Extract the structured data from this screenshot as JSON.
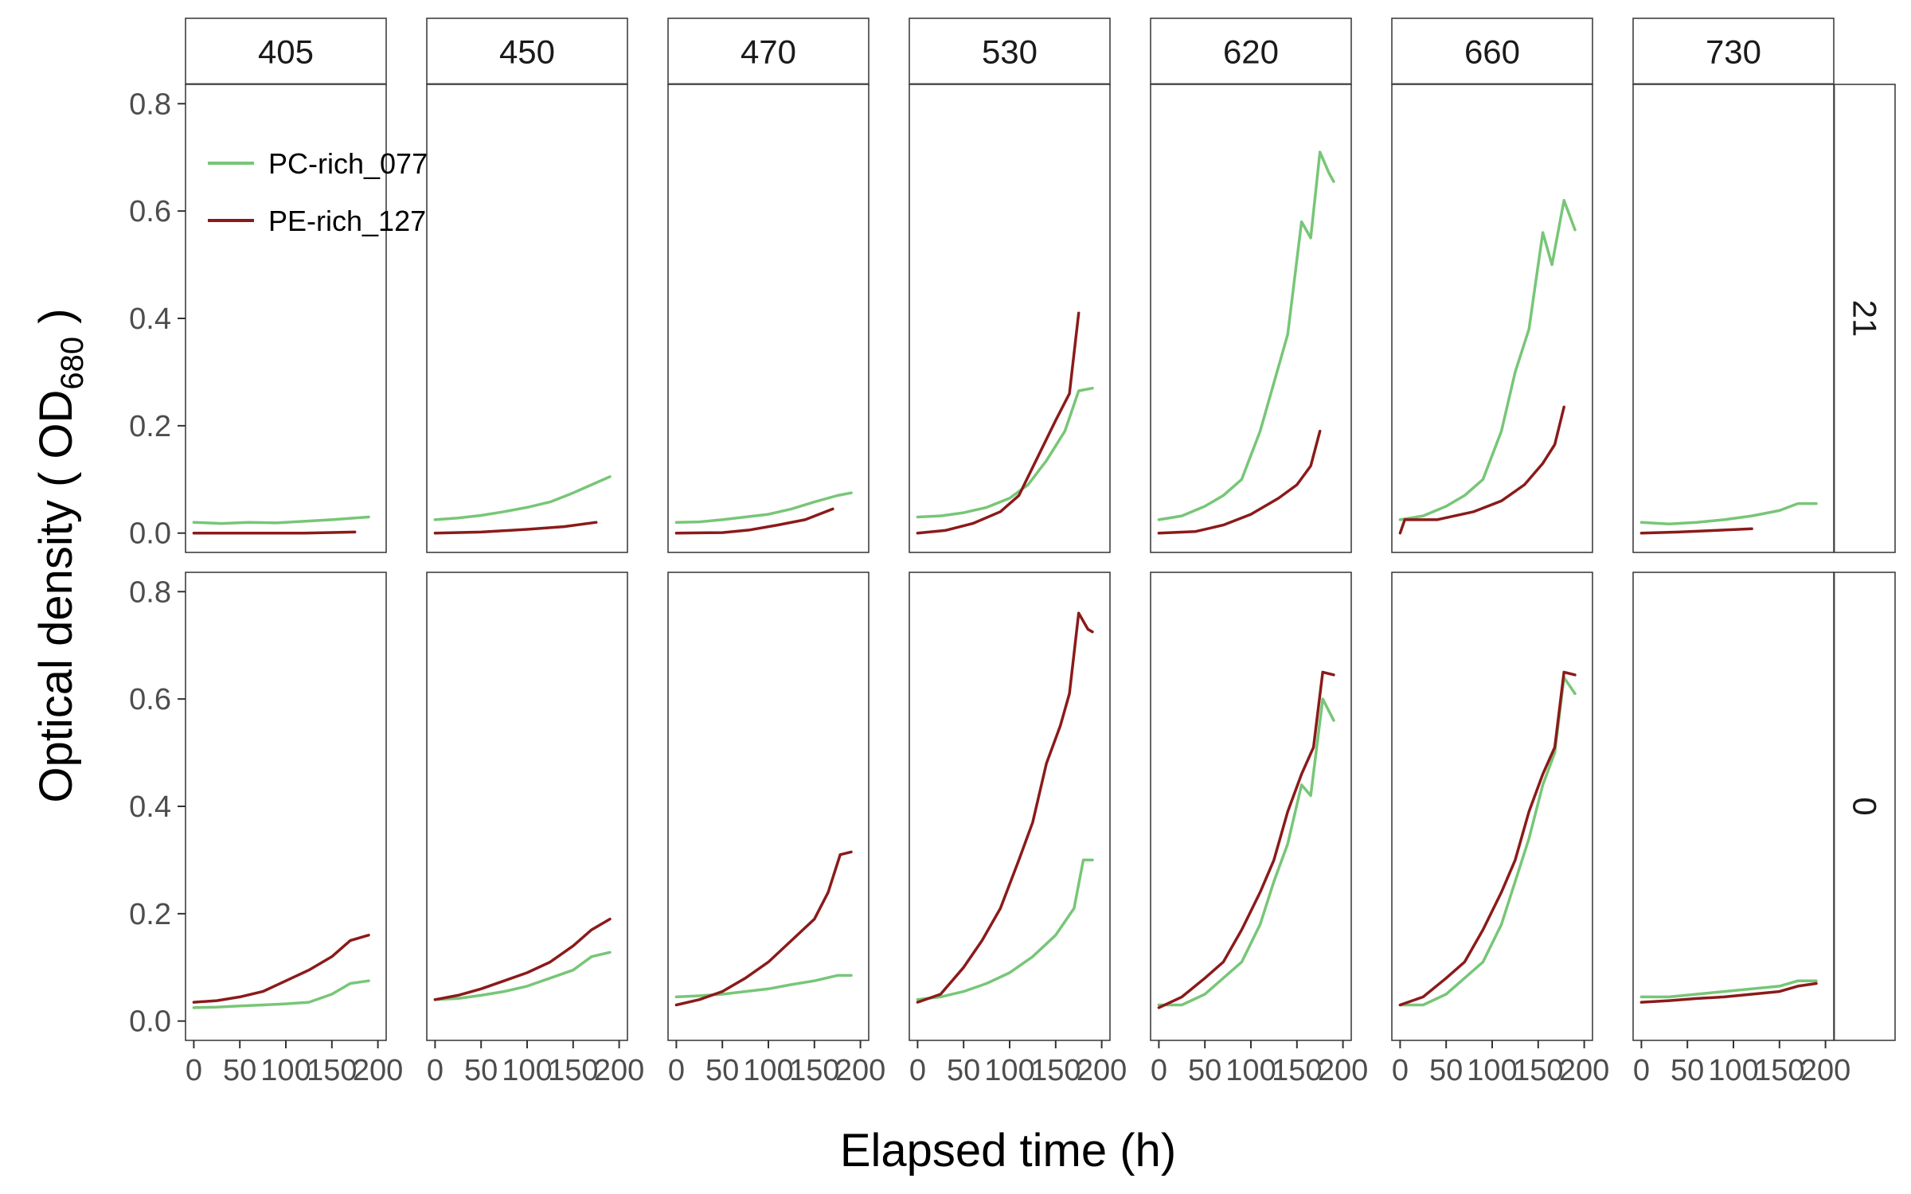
{
  "chart_data": {
    "type": "line",
    "xlabel": "Elapsed time (h)",
    "ylabel": {
      "prefix": "Optical density ( OD",
      "subscript": "680",
      "suffix": " )"
    },
    "xlim": [
      0,
      200
    ],
    "ylim": [
      0,
      0.8
    ],
    "x_ticks": [
      0,
      50,
      100,
      150,
      200
    ],
    "y_ticks": [
      0.0,
      0.2,
      0.4,
      0.6,
      0.8
    ],
    "y_tick_labels": [
      "0.0",
      "0.2",
      "0.4",
      "0.6",
      "0.8"
    ],
    "columns": [
      "405",
      "450",
      "470",
      "530",
      "620",
      "660",
      "730"
    ],
    "rows": [
      "21",
      "0"
    ],
    "legend": {
      "position": "top-left (inside first panel)",
      "entries": [
        {
          "name": "PC-rich_077",
          "color": "#77c677"
        },
        {
          "name": "PE-rich_127",
          "color": "#8b1a1a"
        }
      ]
    },
    "grid": false,
    "panels": [
      {
        "row": "21",
        "column": "405",
        "series": [
          {
            "name": "PC-rich_077",
            "x": [
              0,
              30,
              60,
              90,
              120,
              150,
              190
            ],
            "y": [
              0.02,
              0.018,
              0.02,
              0.019,
              0.022,
              0.025,
              0.03
            ]
          },
          {
            "name": "PE-rich_127",
            "x": [
              0,
              60,
              120,
              175
            ],
            "y": [
              0.0,
              0.0,
              0.0,
              0.002
            ]
          }
        ]
      },
      {
        "row": "21",
        "column": "450",
        "series": [
          {
            "name": "PC-rich_077",
            "x": [
              0,
              25,
              50,
              75,
              100,
              125,
              150,
              170,
              190
            ],
            "y": [
              0.025,
              0.028,
              0.033,
              0.04,
              0.048,
              0.058,
              0.075,
              0.09,
              0.105
            ]
          },
          {
            "name": "PE-rich_127",
            "x": [
              0,
              50,
              100,
              140,
              175
            ],
            "y": [
              0.0,
              0.002,
              0.007,
              0.012,
              0.02
            ]
          }
        ]
      },
      {
        "row": "21",
        "column": "470",
        "series": [
          {
            "name": "PC-rich_077",
            "x": [
              0,
              25,
              50,
              75,
              100,
              125,
              150,
              175,
              190
            ],
            "y": [
              0.02,
              0.021,
              0.025,
              0.03,
              0.035,
              0.045,
              0.058,
              0.07,
              0.075
            ]
          },
          {
            "name": "PE-rich_127",
            "x": [
              0,
              50,
              80,
              110,
              140,
              170
            ],
            "y": [
              0.0,
              0.001,
              0.006,
              0.015,
              0.025,
              0.045
            ]
          }
        ]
      },
      {
        "row": "21",
        "column": "530",
        "series": [
          {
            "name": "PC-rich_077",
            "x": [
              0,
              25,
              50,
              75,
              100,
              120,
              140,
              160,
              175,
              190
            ],
            "y": [
              0.03,
              0.032,
              0.038,
              0.048,
              0.065,
              0.09,
              0.135,
              0.19,
              0.265,
              0.27
            ]
          },
          {
            "name": "PE-rich_127",
            "x": [
              0,
              30,
              60,
              90,
              110,
              130,
              150,
              165,
              175
            ],
            "y": [
              0.0,
              0.005,
              0.018,
              0.04,
              0.07,
              0.14,
              0.21,
              0.26,
              0.41
            ]
          }
        ]
      },
      {
        "row": "21",
        "column": "620",
        "series": [
          {
            "name": "PC-rich_077",
            "x": [
              0,
              25,
              50,
              70,
              90,
              110,
              125,
              140,
              155,
              165,
              175,
              185,
              190
            ],
            "y": [
              0.025,
              0.032,
              0.05,
              0.07,
              0.1,
              0.19,
              0.28,
              0.37,
              0.58,
              0.55,
              0.71,
              0.67,
              0.655
            ]
          },
          {
            "name": "PE-rich_127",
            "x": [
              0,
              40,
              70,
              100,
              130,
              150,
              165,
              175
            ],
            "y": [
              0.0,
              0.003,
              0.015,
              0.035,
              0.065,
              0.09,
              0.125,
              0.19
            ]
          }
        ]
      },
      {
        "row": "21",
        "column": "660",
        "series": [
          {
            "name": "PC-rich_077",
            "x": [
              0,
              25,
              50,
              70,
              90,
              110,
              125,
              140,
              155,
              165,
              178,
              190
            ],
            "y": [
              0.025,
              0.032,
              0.05,
              0.07,
              0.1,
              0.19,
              0.3,
              0.38,
              0.56,
              0.5,
              0.62,
              0.565
            ]
          },
          {
            "name": "PE-rich_127",
            "x": [
              0,
              5,
              40,
              80,
              110,
              135,
              155,
              168,
              178
            ],
            "y": [
              0.0,
              0.025,
              0.025,
              0.04,
              0.06,
              0.09,
              0.13,
              0.165,
              0.235
            ]
          }
        ]
      },
      {
        "row": "21",
        "column": "730",
        "series": [
          {
            "name": "PC-rich_077",
            "x": [
              0,
              30,
              60,
              90,
              120,
              150,
              170,
              190
            ],
            "y": [
              0.02,
              0.017,
              0.02,
              0.025,
              0.032,
              0.042,
              0.055,
              0.055
            ]
          },
          {
            "name": "PE-rich_127",
            "x": [
              0,
              40,
              80,
              120
            ],
            "y": [
              0.0,
              0.002,
              0.005,
              0.008
            ]
          }
        ]
      },
      {
        "row": "0",
        "column": "405",
        "series": [
          {
            "name": "PC-rich_077",
            "x": [
              0,
              25,
              50,
              75,
              100,
              125,
              150,
              170,
              190
            ],
            "y": [
              0.025,
              0.026,
              0.028,
              0.03,
              0.032,
              0.035,
              0.05,
              0.07,
              0.075
            ]
          },
          {
            "name": "PE-rich_127",
            "x": [
              0,
              25,
              50,
              75,
              100,
              125,
              150,
              170,
              190
            ],
            "y": [
              0.035,
              0.038,
              0.045,
              0.055,
              0.075,
              0.095,
              0.12,
              0.15,
              0.16
            ]
          }
        ]
      },
      {
        "row": "0",
        "column": "450",
        "series": [
          {
            "name": "PC-rich_077",
            "x": [
              0,
              25,
              50,
              75,
              100,
              125,
              150,
              170,
              190
            ],
            "y": [
              0.04,
              0.042,
              0.048,
              0.055,
              0.065,
              0.08,
              0.095,
              0.12,
              0.128
            ]
          },
          {
            "name": "PE-rich_127",
            "x": [
              0,
              25,
              50,
              75,
              100,
              125,
              150,
              170,
              190
            ],
            "y": [
              0.04,
              0.048,
              0.06,
              0.075,
              0.09,
              0.11,
              0.14,
              0.17,
              0.19
            ]
          }
        ]
      },
      {
        "row": "0",
        "column": "470",
        "series": [
          {
            "name": "PC-rich_077",
            "x": [
              0,
              25,
              50,
              75,
              100,
              125,
              150,
              175,
              190
            ],
            "y": [
              0.045,
              0.047,
              0.05,
              0.055,
              0.06,
              0.068,
              0.075,
              0.085,
              0.085
            ]
          },
          {
            "name": "PE-rich_127",
            "x": [
              0,
              25,
              50,
              75,
              100,
              125,
              150,
              165,
              178,
              190
            ],
            "y": [
              0.03,
              0.04,
              0.055,
              0.08,
              0.11,
              0.15,
              0.19,
              0.24,
              0.31,
              0.315
            ]
          }
        ]
      },
      {
        "row": "0",
        "column": "530",
        "series": [
          {
            "name": "PC-rich_077",
            "x": [
              0,
              25,
              50,
              75,
              100,
              125,
              150,
              170,
              180,
              190
            ],
            "y": [
              0.04,
              0.045,
              0.055,
              0.07,
              0.09,
              0.12,
              0.16,
              0.21,
              0.3,
              0.3
            ]
          },
          {
            "name": "PE-rich_127",
            "x": [
              0,
              25,
              50,
              70,
              90,
              110,
              125,
              140,
              155,
              165,
              175,
              185,
              190
            ],
            "y": [
              0.035,
              0.05,
              0.1,
              0.15,
              0.21,
              0.3,
              0.37,
              0.48,
              0.55,
              0.61,
              0.76,
              0.73,
              0.725
            ]
          }
        ]
      },
      {
        "row": "0",
        "column": "620",
        "series": [
          {
            "name": "PC-rich_077",
            "x": [
              0,
              25,
              50,
              70,
              90,
              110,
              125,
              140,
              155,
              165,
              178,
              190
            ],
            "y": [
              0.03,
              0.03,
              0.05,
              0.08,
              0.11,
              0.18,
              0.26,
              0.33,
              0.44,
              0.42,
              0.6,
              0.56
            ]
          },
          {
            "name": "PE-rich_127",
            "x": [
              0,
              25,
              50,
              70,
              90,
              110,
              125,
              140,
              155,
              168,
              178,
              190
            ],
            "y": [
              0.025,
              0.045,
              0.08,
              0.11,
              0.17,
              0.24,
              0.3,
              0.39,
              0.46,
              0.51,
              0.65,
              0.645
            ]
          }
        ]
      },
      {
        "row": "0",
        "column": "660",
        "series": [
          {
            "name": "PC-rich_077",
            "x": [
              0,
              25,
              50,
              70,
              90,
              110,
              125,
              140,
              155,
              168,
              178,
              190
            ],
            "y": [
              0.03,
              0.03,
              0.05,
              0.08,
              0.11,
              0.18,
              0.26,
              0.34,
              0.44,
              0.5,
              0.64,
              0.61
            ]
          },
          {
            "name": "PE-rich_127",
            "x": [
              0,
              25,
              50,
              70,
              90,
              110,
              125,
              140,
              155,
              168,
              178,
              190
            ],
            "y": [
              0.03,
              0.045,
              0.08,
              0.11,
              0.17,
              0.24,
              0.3,
              0.39,
              0.46,
              0.51,
              0.65,
              0.645
            ]
          }
        ]
      },
      {
        "row": "0",
        "column": "730",
        "series": [
          {
            "name": "PC-rich_077",
            "x": [
              0,
              30,
              60,
              90,
              120,
              150,
              170,
              190
            ],
            "y": [
              0.045,
              0.045,
              0.05,
              0.055,
              0.06,
              0.065,
              0.075,
              0.075
            ]
          },
          {
            "name": "PE-rich_127",
            "x": [
              0,
              30,
              60,
              90,
              120,
              150,
              170,
              190
            ],
            "y": [
              0.035,
              0.038,
              0.042,
              0.045,
              0.05,
              0.055,
              0.065,
              0.07
            ]
          }
        ]
      }
    ]
  }
}
